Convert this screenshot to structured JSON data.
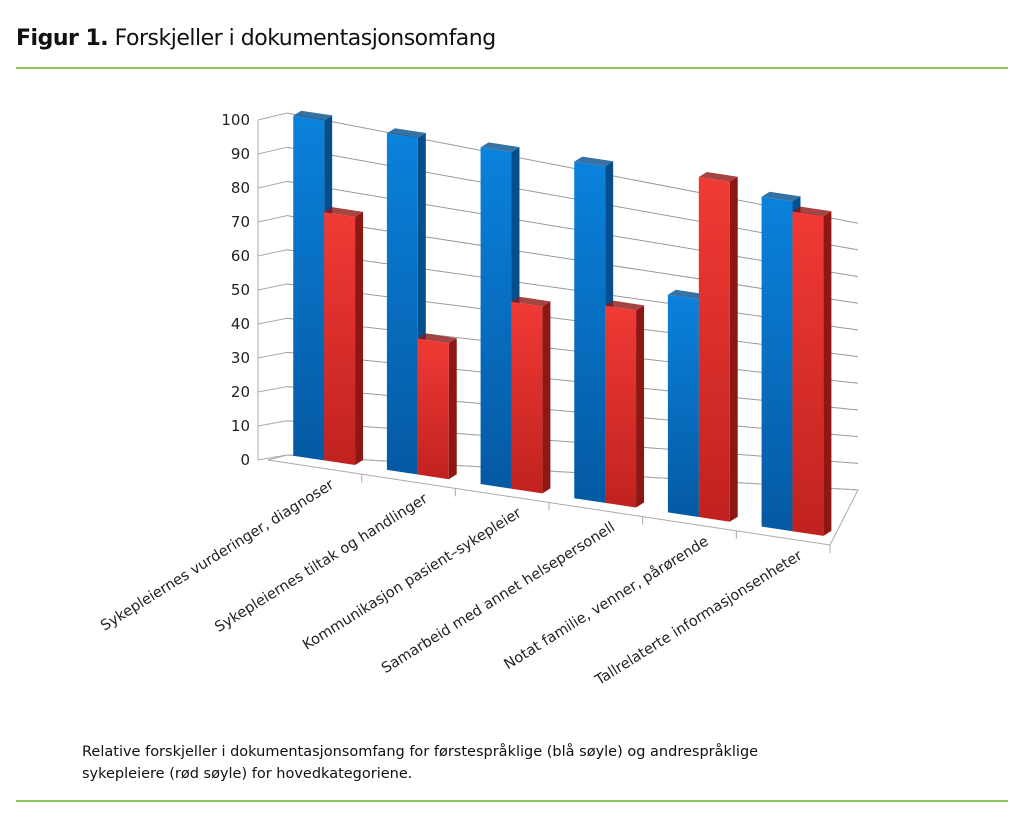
{
  "figure": {
    "label": "Figur 1.",
    "title": "Forskjeller i dokumentasjonsomfang"
  },
  "caption": "Relative forskjeller i dokumentasjonsomfang for førstespråklige (blå søyle) og andrespråklige sykepleiere (rød søyle) for hovedkategoriene.",
  "chart_data": {
    "type": "bar",
    "style": "3d-clustered-column",
    "title": "",
    "xlabel": "",
    "ylabel": "",
    "ylim": [
      0,
      100
    ],
    "yticks": [
      0,
      10,
      20,
      30,
      40,
      50,
      60,
      70,
      80,
      90,
      100
    ],
    "grid": true,
    "legend": "none",
    "categories": [
      "Sykepleiernes vurderinger, diagnoser",
      "Sykepleiernes tiltak og handlinger",
      "Kommunikasjon pasient–sykepleier",
      "Samarbeid med annet helsepersonell",
      "Notat familie, venner, pårørende",
      "Tallrelaterte informasjonsenheter"
    ],
    "series": [
      {
        "color": "#0a7bd0",
        "values": [
          100,
          99,
          99,
          99,
          64,
          97
        ]
      },
      {
        "color": "#e8322f",
        "values": [
          73,
          40,
          55,
          58,
          100,
          94
        ]
      }
    ]
  }
}
